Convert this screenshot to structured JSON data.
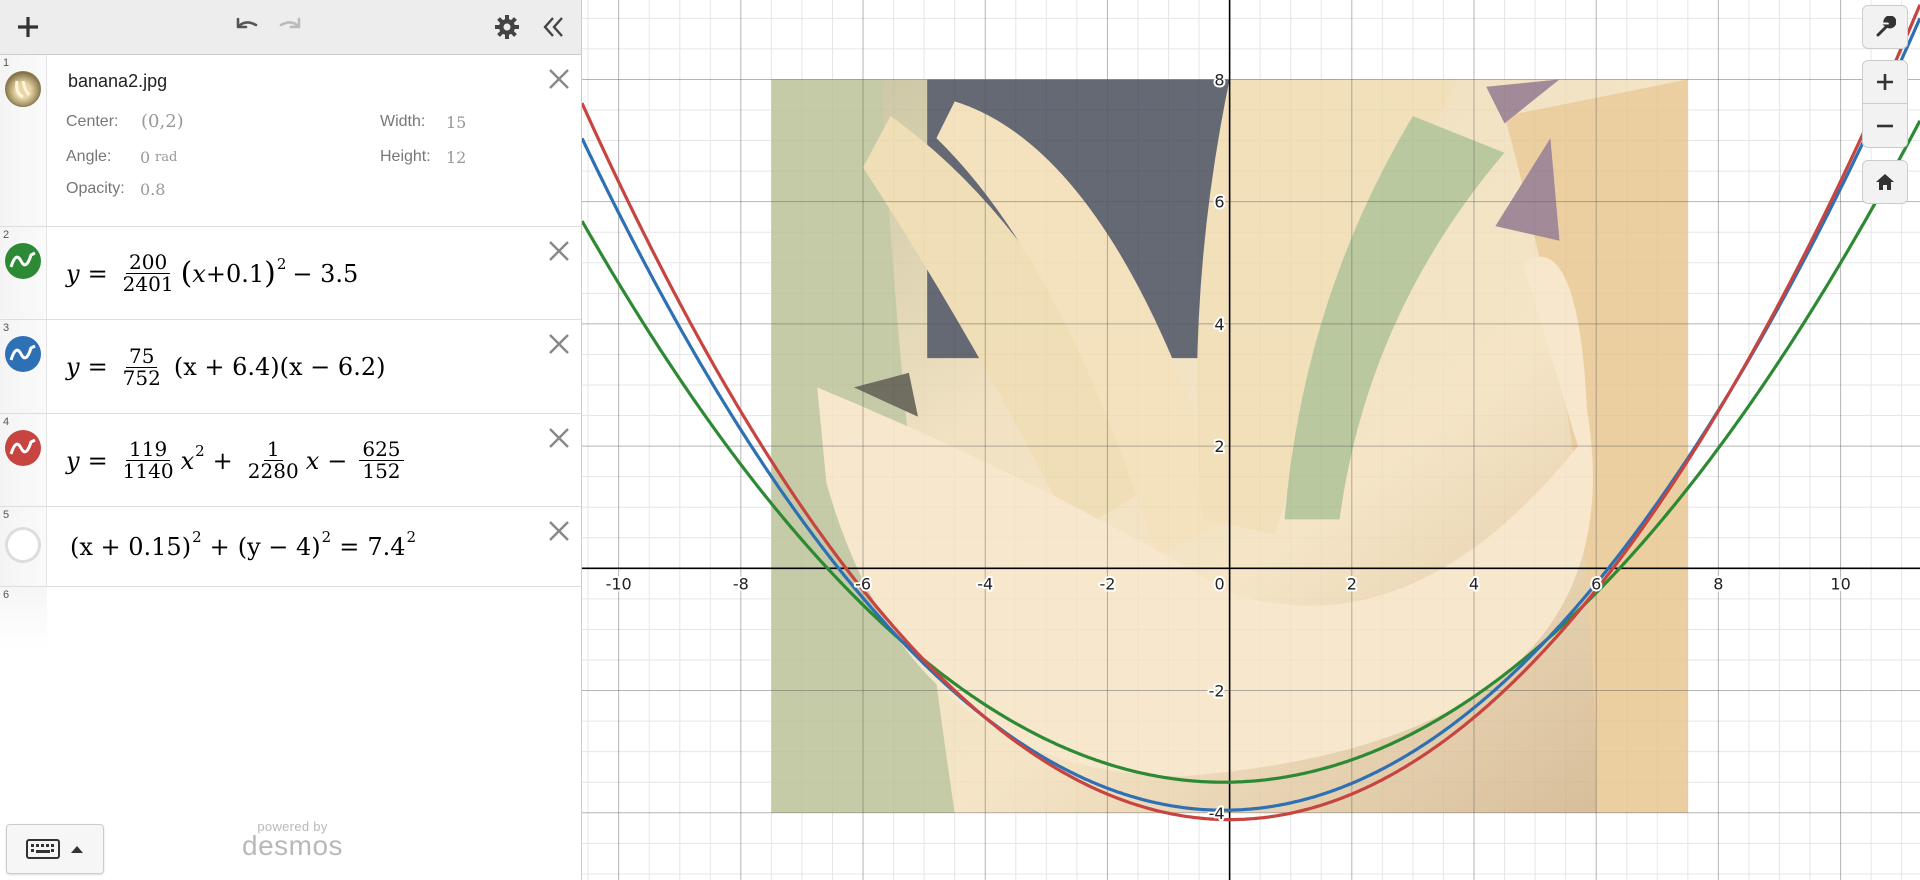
{
  "toolbar": {
    "add": "plus-icon",
    "undo": "undo-icon",
    "redo": "redo-icon",
    "settings": "gear-icon",
    "collapse": "double-chevron-left-icon"
  },
  "expressions": [
    {
      "num": "1",
      "type": "image",
      "filename": "banana2.jpg",
      "center_label": "Center:",
      "center_value": "(0,2)",
      "width_label": "Width:",
      "width_value": "15",
      "angle_label": "Angle:",
      "angle_value": "0",
      "angle_unit": "rad",
      "height_label": "Height:",
      "height_value": "12",
      "opacity_label": "Opacity:",
      "opacity_value": "0.8"
    },
    {
      "num": "2",
      "type": "curve",
      "color": "#2d8a34",
      "lhs": "y",
      "eq": "=",
      "frac_n": "200",
      "frac_d": "2401",
      "p1": "(",
      "v1": "x",
      "c1": "+0.1",
      "p2": ")",
      "exp": "2",
      "tail": "− 3.5"
    },
    {
      "num": "3",
      "type": "curve",
      "color": "#2d70b3",
      "lhs": "y",
      "eq": "=",
      "frac_n": "75",
      "frac_d": "752",
      "f1": "(x + 6.4)",
      "f2": "(x − 6.2)"
    },
    {
      "num": "4",
      "type": "curve",
      "color": "#c74440",
      "lhs": "y",
      "eq": "=",
      "a_n": "119",
      "a_d": "1140",
      "x": "x",
      "exp": "2",
      "plus": "+",
      "b_n": "1",
      "b_d": "2280",
      "x2": "x",
      "minus": "−",
      "c_n": "625",
      "c_d": "152"
    },
    {
      "num": "5",
      "type": "circle",
      "t1": "(x + 0.15)",
      "e1": "2",
      "plus": "+",
      "t2": "(y − 4)",
      "e2": "2",
      "eq": "=",
      "r": "7.4",
      "e3": "2"
    },
    {
      "num": "6",
      "type": "empty"
    }
  ],
  "footer": {
    "keyboard": "keyboard-icon",
    "powered_by": "powered by",
    "brand": "desmos"
  },
  "graph": {
    "x_ticks": [
      "-10",
      "-8",
      "-6",
      "-4",
      "-2",
      "0",
      "2",
      "4",
      "6",
      "8",
      "10"
    ],
    "y_ticks": [
      "8",
      "6",
      "4",
      "2",
      "-2",
      "-4"
    ],
    "controls": [
      "wrench-icon",
      "plus-icon",
      "minus-icon",
      "home-icon"
    ]
  },
  "chart_data": {
    "type": "line",
    "title": "",
    "xlabel": "",
    "ylabel": "",
    "xlim": [
      -10.6,
      11.3
    ],
    "ylim": [
      -5.1,
      9.3
    ],
    "grid": true,
    "image_overlay": {
      "filename": "banana2.jpg",
      "center": [
        0,
        2
      ],
      "width": 15,
      "height": 12,
      "opacity": 0.8
    },
    "series": [
      {
        "equation": "y = 200/2401 (x+0.1)^2 - 3.5",
        "color": "#2d8a34",
        "a": 0.0833,
        "h": -0.1,
        "k": -3.5
      },
      {
        "equation": "y = 75/752 (x+6.4)(x-6.2)",
        "color": "#2d70b3",
        "r1": -6.4,
        "r2": 6.2,
        "a": 0.09973
      },
      {
        "equation": "y = 119/1140 x^2 + 1/2280 x - 625/152",
        "color": "#c74440",
        "a": 0.10439,
        "b": 0.000439,
        "c": -4.1118
      }
    ],
    "circle": {
      "center": [
        -0.15,
        4
      ],
      "radius": 7.4,
      "hidden": true
    }
  }
}
